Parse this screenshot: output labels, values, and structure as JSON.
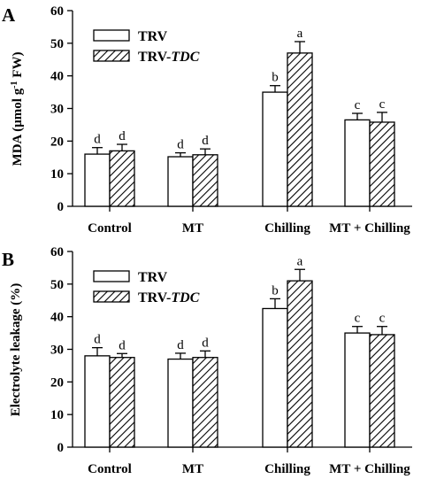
{
  "chart_data": [
    {
      "panel": "A",
      "type": "bar",
      "ylabel": "MDA (μmol g⁻¹ FW)",
      "ylabel_parts": [
        "MDA (μmol g",
        "-1",
        " FW)"
      ],
      "ylim": [
        0,
        60
      ],
      "yticks": [
        0,
        10,
        20,
        30,
        40,
        50,
        60
      ],
      "categories": [
        "Control",
        "MT",
        "Chilling",
        "MT + Chilling"
      ],
      "legend_position": "top-left",
      "series": [
        {
          "name": "TRV",
          "name_parts": [
            "TRV",
            ""
          ],
          "pattern": "open",
          "values": [
            16.0,
            15.2,
            35.0,
            26.5
          ],
          "errors": [
            2.0,
            1.2,
            2.0,
            2.0
          ],
          "labels": [
            "d",
            "d",
            "b",
            "c"
          ]
        },
        {
          "name": "TRV-TDC",
          "name_parts": [
            "TRV-",
            "TDC"
          ],
          "pattern": "hatched",
          "values": [
            17.0,
            15.8,
            47.0,
            25.8
          ],
          "errors": [
            2.0,
            1.8,
            3.5,
            3.0
          ],
          "labels": [
            "d",
            "d",
            "a",
            "c"
          ]
        }
      ]
    },
    {
      "panel": "B",
      "type": "bar",
      "ylabel": "Electrolyte leakage (%)",
      "ylabel_parts": [
        "Electrolyte leakage (%)",
        "",
        ""
      ],
      "ylim": [
        0,
        60
      ],
      "yticks": [
        0,
        10,
        20,
        30,
        40,
        50,
        60
      ],
      "categories": [
        "Control",
        "MT",
        "Chilling",
        "MT + Chilling"
      ],
      "legend_position": "top-left",
      "series": [
        {
          "name": "TRV",
          "name_parts": [
            "TRV",
            ""
          ],
          "pattern": "open",
          "values": [
            28.0,
            27.0,
            42.5,
            35.0
          ],
          "errors": [
            2.5,
            1.8,
            3.0,
            2.0
          ],
          "labels": [
            "d",
            "d",
            "b",
            "c"
          ]
        },
        {
          "name": "TRV-TDC",
          "name_parts": [
            "TRV-",
            "TDC"
          ],
          "pattern": "hatched",
          "values": [
            27.5,
            27.5,
            51.0,
            34.5
          ],
          "errors": [
            1.2,
            2.0,
            3.5,
            2.5
          ],
          "labels": [
            "d",
            "d",
            "a",
            "c"
          ]
        }
      ]
    }
  ]
}
